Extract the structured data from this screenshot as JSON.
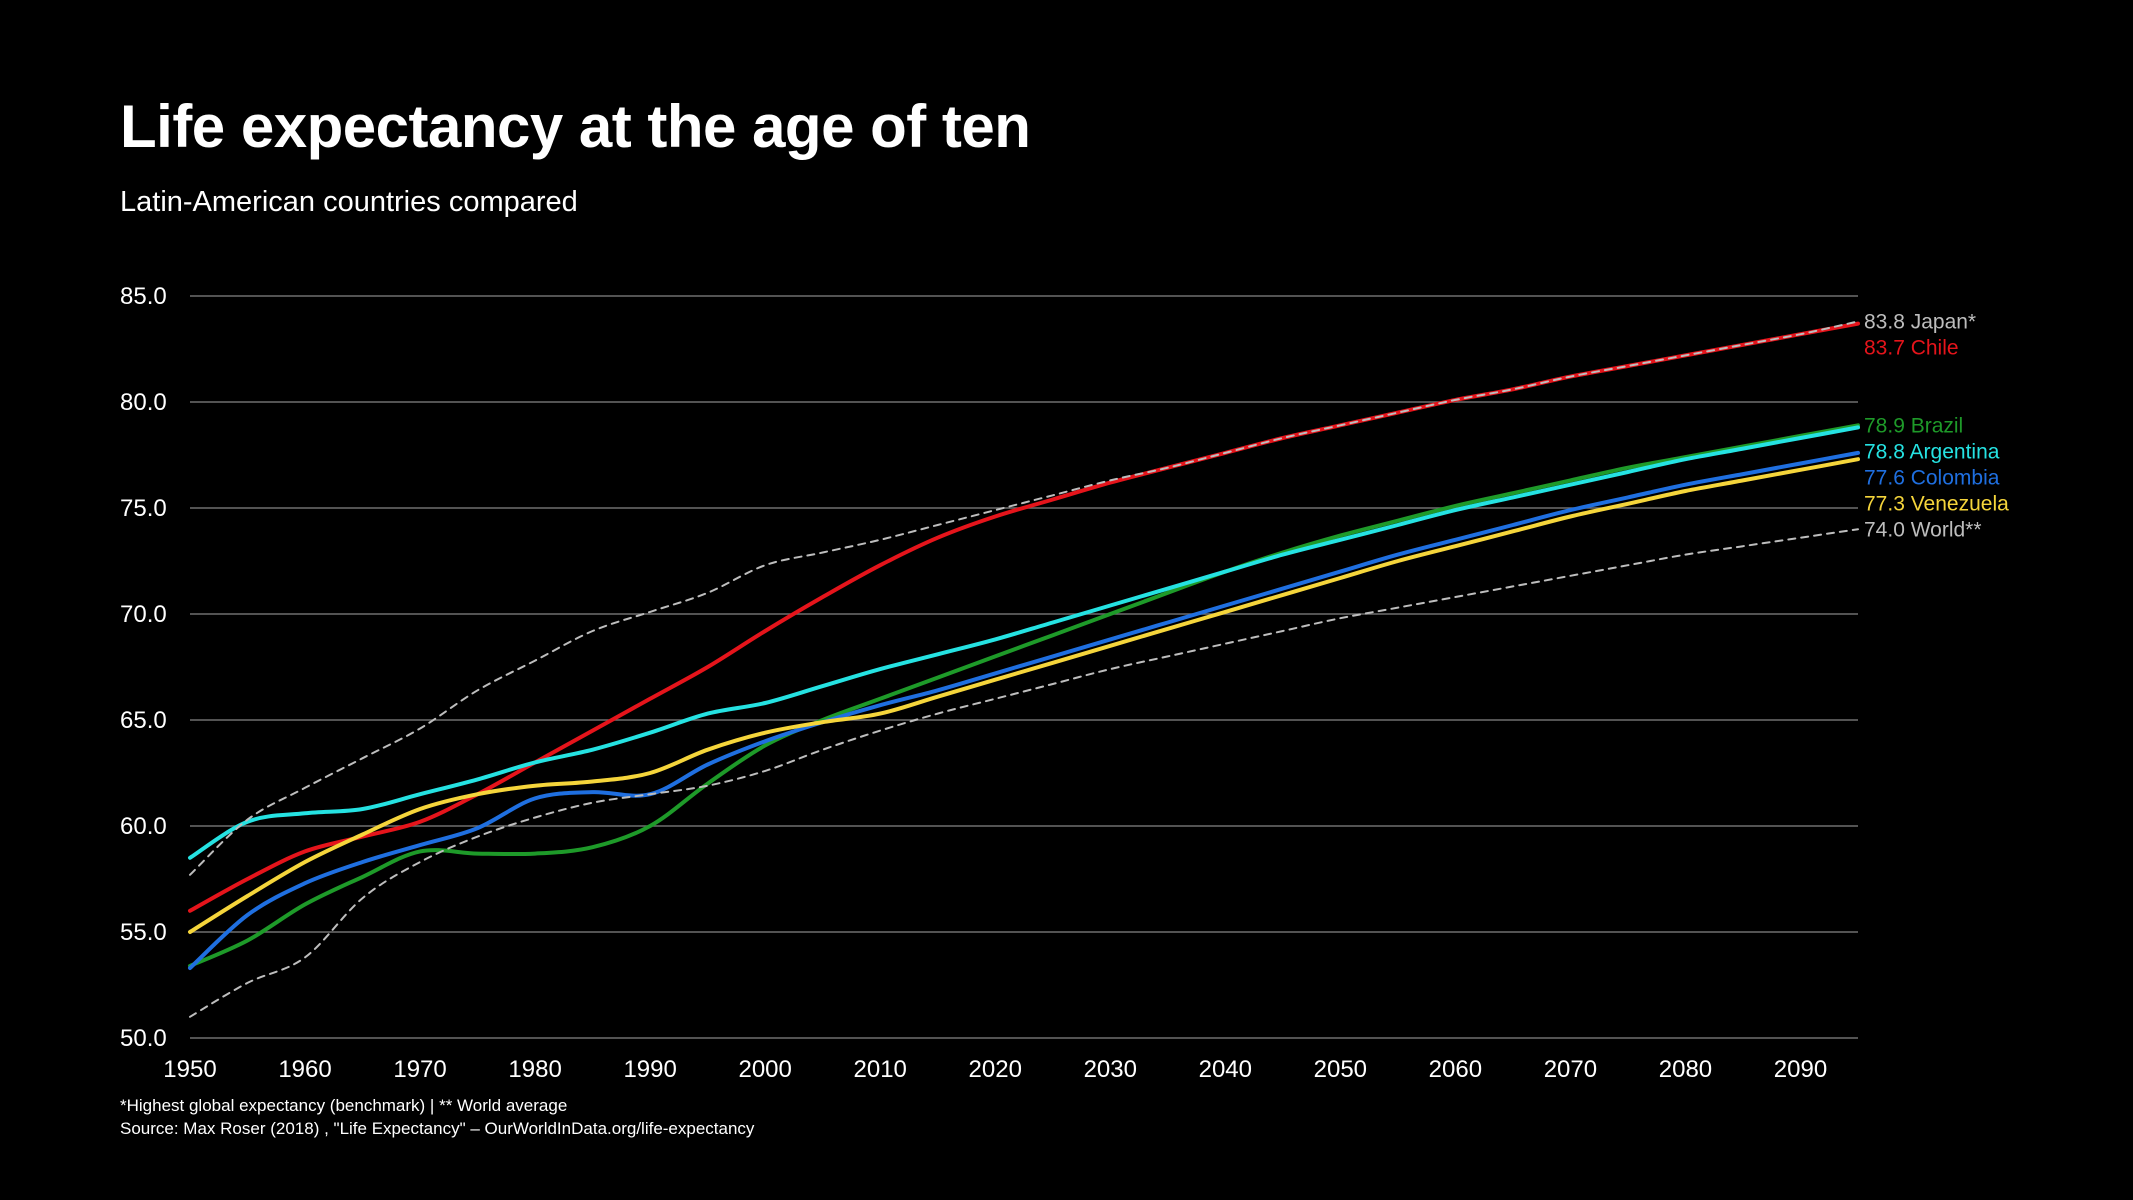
{
  "chart_data": {
    "type": "line",
    "title": "Life expectancy at the age of ten",
    "subtitle": "Latin-American countries compared",
    "xlabel": "",
    "ylabel": "",
    "xlim": [
      1950,
      2095
    ],
    "ylim": [
      50,
      85
    ],
    "x_ticks": [
      "1950",
      "1960",
      "1970",
      "1980",
      "1990",
      "2000",
      "2010",
      "2020",
      "2030",
      "2040",
      "2050",
      "2060",
      "2070",
      "2080",
      "2090"
    ],
    "y_ticks": [
      "50.0",
      "55.0",
      "60.0",
      "65.0",
      "70.0",
      "75.0",
      "80.0",
      "85.0"
    ],
    "grid": "horizontal",
    "legend": "end-of-line labels on the right",
    "x": [
      1950,
      1955,
      1960,
      1965,
      1970,
      1975,
      1980,
      1985,
      1990,
      1995,
      2000,
      2005,
      2010,
      2015,
      2020,
      2025,
      2030,
      2035,
      2040,
      2045,
      2050,
      2055,
      2060,
      2065,
      2070,
      2075,
      2080,
      2085,
      2090,
      2095
    ],
    "series": [
      {
        "name": "Japan*",
        "end_label": "83.8 Japan*",
        "color": "#bdbdbd",
        "dashed": true,
        "values": [
          57.7,
          60.3,
          61.8,
          63.2,
          64.6,
          66.4,
          67.8,
          69.2,
          70.1,
          71.0,
          72.3,
          72.9,
          73.5,
          74.2,
          74.9,
          75.6,
          76.3,
          76.9,
          77.6,
          78.3,
          78.9,
          79.5,
          80.1,
          80.6,
          81.2,
          81.7,
          82.2,
          82.7,
          83.2,
          83.8
        ]
      },
      {
        "name": "Chile",
        "end_label": "83.7 Chile",
        "color": "#e5141b",
        "values": [
          56.0,
          57.5,
          58.8,
          59.5,
          60.2,
          61.5,
          63.0,
          64.5,
          66.0,
          67.5,
          69.2,
          70.8,
          72.3,
          73.6,
          74.6,
          75.4,
          76.2,
          76.9,
          77.6,
          78.3,
          78.9,
          79.5,
          80.1,
          80.6,
          81.2,
          81.7,
          82.2,
          82.7,
          83.2,
          83.7
        ]
      },
      {
        "name": "Brazil",
        "end_label": "78.9 Brazil",
        "color": "#1e9a29",
        "values": [
          53.4,
          54.6,
          56.3,
          57.6,
          58.8,
          58.7,
          58.7,
          59.0,
          60.0,
          62.0,
          63.8,
          65.0,
          66.0,
          67.0,
          68.0,
          69.0,
          70.0,
          71.0,
          72.0,
          72.9,
          73.7,
          74.4,
          75.1,
          75.7,
          76.3,
          76.9,
          77.4,
          77.9,
          78.4,
          78.9
        ]
      },
      {
        "name": "Argentina",
        "end_label": "78.8 Argentina",
        "color": "#25e2e2",
        "values": [
          58.5,
          60.2,
          60.6,
          60.8,
          61.5,
          62.2,
          63.0,
          63.6,
          64.4,
          65.3,
          65.8,
          66.6,
          67.4,
          68.1,
          68.8,
          69.6,
          70.4,
          71.2,
          72.0,
          72.8,
          73.5,
          74.2,
          74.9,
          75.5,
          76.1,
          76.7,
          77.3,
          77.8,
          78.3,
          78.8
        ]
      },
      {
        "name": "Colombia",
        "end_label": "77.6 Colombia",
        "color": "#1f6fe0",
        "values": [
          53.3,
          55.8,
          57.3,
          58.3,
          59.1,
          59.9,
          61.3,
          61.6,
          61.5,
          62.9,
          64.0,
          64.9,
          65.7,
          66.4,
          67.2,
          68.0,
          68.8,
          69.6,
          70.4,
          71.2,
          72.0,
          72.8,
          73.5,
          74.2,
          74.9,
          75.5,
          76.1,
          76.6,
          77.1,
          77.6
        ]
      },
      {
        "name": "Venezuela",
        "end_label": "77.3 Venezuela",
        "color": "#f5d53b",
        "values": [
          55.0,
          56.7,
          58.3,
          59.6,
          60.8,
          61.5,
          61.9,
          62.1,
          62.5,
          63.6,
          64.4,
          64.9,
          65.3,
          66.1,
          66.9,
          67.7,
          68.5,
          69.3,
          70.1,
          70.9,
          71.7,
          72.5,
          73.2,
          73.9,
          74.6,
          75.2,
          75.8,
          76.3,
          76.8,
          77.3
        ]
      },
      {
        "name": "World**",
        "end_label": "74.0 World**",
        "color": "#bdbdbd",
        "dashed": true,
        "values": [
          51.0,
          52.6,
          53.8,
          56.6,
          58.3,
          59.5,
          60.4,
          61.1,
          61.5,
          61.9,
          62.6,
          63.6,
          64.5,
          65.3,
          66.0,
          66.7,
          67.4,
          68.0,
          68.6,
          69.2,
          69.8,
          70.3,
          70.8,
          71.3,
          71.8,
          72.3,
          72.8,
          73.2,
          73.6,
          74.0
        ]
      }
    ]
  },
  "footnote": "*Highest global expectancy (benchmark) | ** World average",
  "source": "Source: Max Roser (2018) , \"Life Expectancy\" – OurWorldInData.org/life-expectancy"
}
